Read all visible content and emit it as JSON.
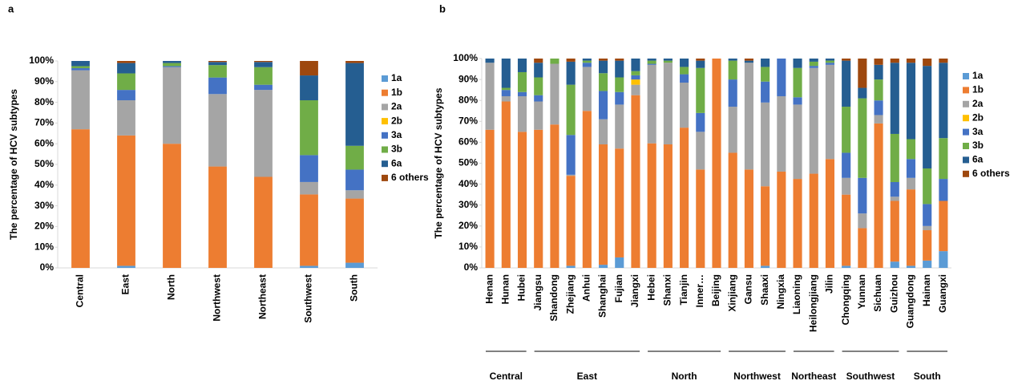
{
  "chart_data": [
    {
      "type": "bar",
      "stacked": true,
      "panel_label": "a",
      "y_label": "The percentage of HCV subtypes",
      "categories": [
        "Central",
        "East",
        "North",
        "Northwest",
        "Northeast",
        "Southwest",
        "South"
      ],
      "ylim": [
        0,
        100
      ],
      "yticks": [
        {
          "value": 0,
          "label": "0%"
        },
        {
          "value": 10,
          "label": "10%"
        },
        {
          "value": 20,
          "label": "20%"
        },
        {
          "value": 30,
          "label": "30%"
        },
        {
          "value": 40,
          "label": "40%"
        },
        {
          "value": 50,
          "label": "50%"
        },
        {
          "value": 60,
          "label": "60%"
        },
        {
          "value": 70,
          "label": "70%"
        },
        {
          "value": 80,
          "label": "80%"
        },
        {
          "value": 90,
          "label": "90%"
        },
        {
          "value": 100,
          "label": "100%"
        }
      ],
      "series": [
        {
          "name": "1a",
          "color": "#5b9bd5",
          "values": [
            0,
            1,
            0,
            0,
            0,
            1,
            2.5
          ]
        },
        {
          "name": "1b",
          "color": "#ed7d31",
          "values": [
            67,
            63,
            60,
            49,
            44,
            34.5,
            31
          ]
        },
        {
          "name": "2a",
          "color": "#a5a5a5",
          "values": [
            28.5,
            17,
            37,
            35,
            42,
            6,
            4
          ]
        },
        {
          "name": "2b",
          "color": "#ffc000",
          "values": [
            0,
            0,
            0,
            0,
            0,
            0,
            0
          ]
        },
        {
          "name": "3a",
          "color": "#4472c4",
          "values": [
            1,
            5,
            0.5,
            8,
            2.5,
            13,
            10
          ]
        },
        {
          "name": "3b",
          "color": "#70ad47",
          "values": [
            1,
            8,
            1.5,
            6,
            8.5,
            26.5,
            11.5
          ]
        },
        {
          "name": "6a",
          "color": "#255e91",
          "values": [
            2.5,
            5,
            1,
            1.5,
            2.5,
            12,
            40
          ]
        },
        {
          "name": "6 others",
          "color": "#9e480e",
          "values": [
            0,
            1,
            0,
            0.5,
            0.5,
            7,
            1
          ]
        }
      ]
    },
    {
      "type": "bar",
      "stacked": true,
      "panel_label": "b",
      "y_label": "The percentage of HCV subtypes",
      "categories": [
        "Henan",
        "Hunan",
        "Hubei",
        "Jiangsu",
        "Shandong",
        "Zhejiang",
        "Anhui",
        "Shanghai",
        "Fujian",
        "Jiangxi",
        "Hebei",
        "Shanxi",
        "Tianjin",
        "Inner…",
        "Beijing",
        "Xinjiang",
        "Gansu",
        "Shaaxi",
        "Ningxia",
        "Liaoning",
        "Heilongjiang",
        "Jilin",
        "Chongqing",
        "Yunnan",
        "Sichuan",
        "Guizhou",
        "Guangdong",
        "Hainan",
        "Guangxi"
      ],
      "groups": [
        {
          "name": "Central",
          "categories": [
            "Henan",
            "Hunan",
            "Hubei"
          ]
        },
        {
          "name": "East",
          "categories": [
            "Jiangsu",
            "Shandong",
            "Zhejiang",
            "Anhui",
            "Shanghai",
            "Fujian",
            "Jiangxi"
          ]
        },
        {
          "name": "North",
          "categories": [
            "Hebei",
            "Shanxi",
            "Tianjin",
            "Inner…",
            "Beijing"
          ]
        },
        {
          "name": "Northwest",
          "categories": [
            "Xinjiang",
            "Gansu",
            "Shaaxi",
            "Ningxia"
          ]
        },
        {
          "name": "Northeast",
          "categories": [
            "Liaoning",
            "Heilongjiang",
            "Jilin"
          ]
        },
        {
          "name": "Southwest",
          "categories": [
            "Chongqing",
            "Yunnan",
            "Sichuan",
            "Guizhou"
          ]
        },
        {
          "name": "South",
          "categories": [
            "Guangdong",
            "Hainan",
            "Guangxi"
          ]
        }
      ],
      "ylim": [
        0,
        100
      ],
      "yticks": [
        {
          "value": 0,
          "label": "0%"
        },
        {
          "value": 10,
          "label": "10%"
        },
        {
          "value": 20,
          "label": "20%"
        },
        {
          "value": 30,
          "label": "30%"
        },
        {
          "value": 40,
          "label": "40%"
        },
        {
          "value": 50,
          "label": "50%"
        },
        {
          "value": 60,
          "label": "60%"
        },
        {
          "value": 70,
          "label": "70%"
        },
        {
          "value": 80,
          "label": "80%"
        },
        {
          "value": 90,
          "label": "90%"
        },
        {
          "value": 100,
          "label": "100%"
        }
      ],
      "series": [
        {
          "name": "1a",
          "color": "#5b9bd5",
          "values": [
            0,
            0,
            0,
            0,
            0,
            1,
            0,
            1.5,
            5,
            0,
            0,
            0,
            0,
            0,
            0,
            0,
            0,
            1,
            0,
            0,
            0,
            0,
            1,
            0,
            0,
            3,
            1,
            3.5,
            8
          ]
        },
        {
          "name": "1b",
          "color": "#ed7d31",
          "values": [
            66,
            79.5,
            65,
            66,
            68.5,
            43,
            75,
            57.5,
            52,
            82.5,
            59.5,
            59,
            67,
            47,
            100,
            55,
            47,
            38,
            46,
            42.5,
            45,
            52,
            34,
            19,
            69,
            29,
            36.5,
            14.5,
            24
          ]
        },
        {
          "name": "2a",
          "color": "#a5a5a5",
          "values": [
            32,
            2.5,
            17,
            13.5,
            29,
            0.5,
            21,
            12,
            21,
            5,
            37.5,
            39,
            21.5,
            18,
            0,
            22,
            51,
            40,
            36,
            35.5,
            50.5,
            45,
            8,
            7,
            4,
            2,
            5.5,
            2,
            0
          ]
        },
        {
          "name": "2b",
          "color": "#ffc000",
          "values": [
            0,
            0,
            0,
            0,
            0,
            0,
            0,
            0,
            0,
            2.5,
            0,
            0,
            0,
            0,
            0,
            0,
            0,
            0,
            0,
            0,
            0,
            0,
            0,
            0,
            0,
            0,
            0,
            0,
            0
          ]
        },
        {
          "name": "3a",
          "color": "#4472c4",
          "values": [
            0,
            3,
            2,
            3,
            0,
            19,
            2,
            13.5,
            6,
            2,
            0.5,
            0,
            4,
            9,
            0,
            13,
            0,
            10,
            18,
            3.5,
            1,
            1,
            12,
            17,
            7,
            7,
            9,
            10.5,
            10.5
          ]
        },
        {
          "name": "3b",
          "color": "#70ad47",
          "values": [
            0,
            1,
            9.5,
            8.5,
            2.5,
            24,
            1,
            8.5,
            7,
            2,
            1.5,
            1,
            3.5,
            21.5,
            0,
            9,
            0,
            7,
            0,
            14,
            2,
            1,
            22,
            38,
            10,
            23,
            9.5,
            17,
            19.5
          ]
        },
        {
          "name": "6a",
          "color": "#255e91",
          "values": [
            2,
            14,
            6.5,
            7,
            0,
            11,
            1,
            6,
            8,
            6,
            1,
            1,
            4,
            3.5,
            0,
            1,
            1,
            4,
            0,
            4.5,
            1.5,
            1,
            22,
            5,
            7,
            34,
            36.5,
            49,
            36
          ]
        },
        {
          "name": "6 others",
          "color": "#9e480e",
          "values": [
            0,
            0,
            0,
            2,
            0,
            1.5,
            0,
            1,
            1,
            0,
            0,
            0,
            0,
            1,
            0,
            0,
            1,
            0,
            0,
            0,
            0,
            0,
            1,
            14,
            3,
            2,
            2,
            3.5,
            2
          ]
        }
      ]
    }
  ]
}
